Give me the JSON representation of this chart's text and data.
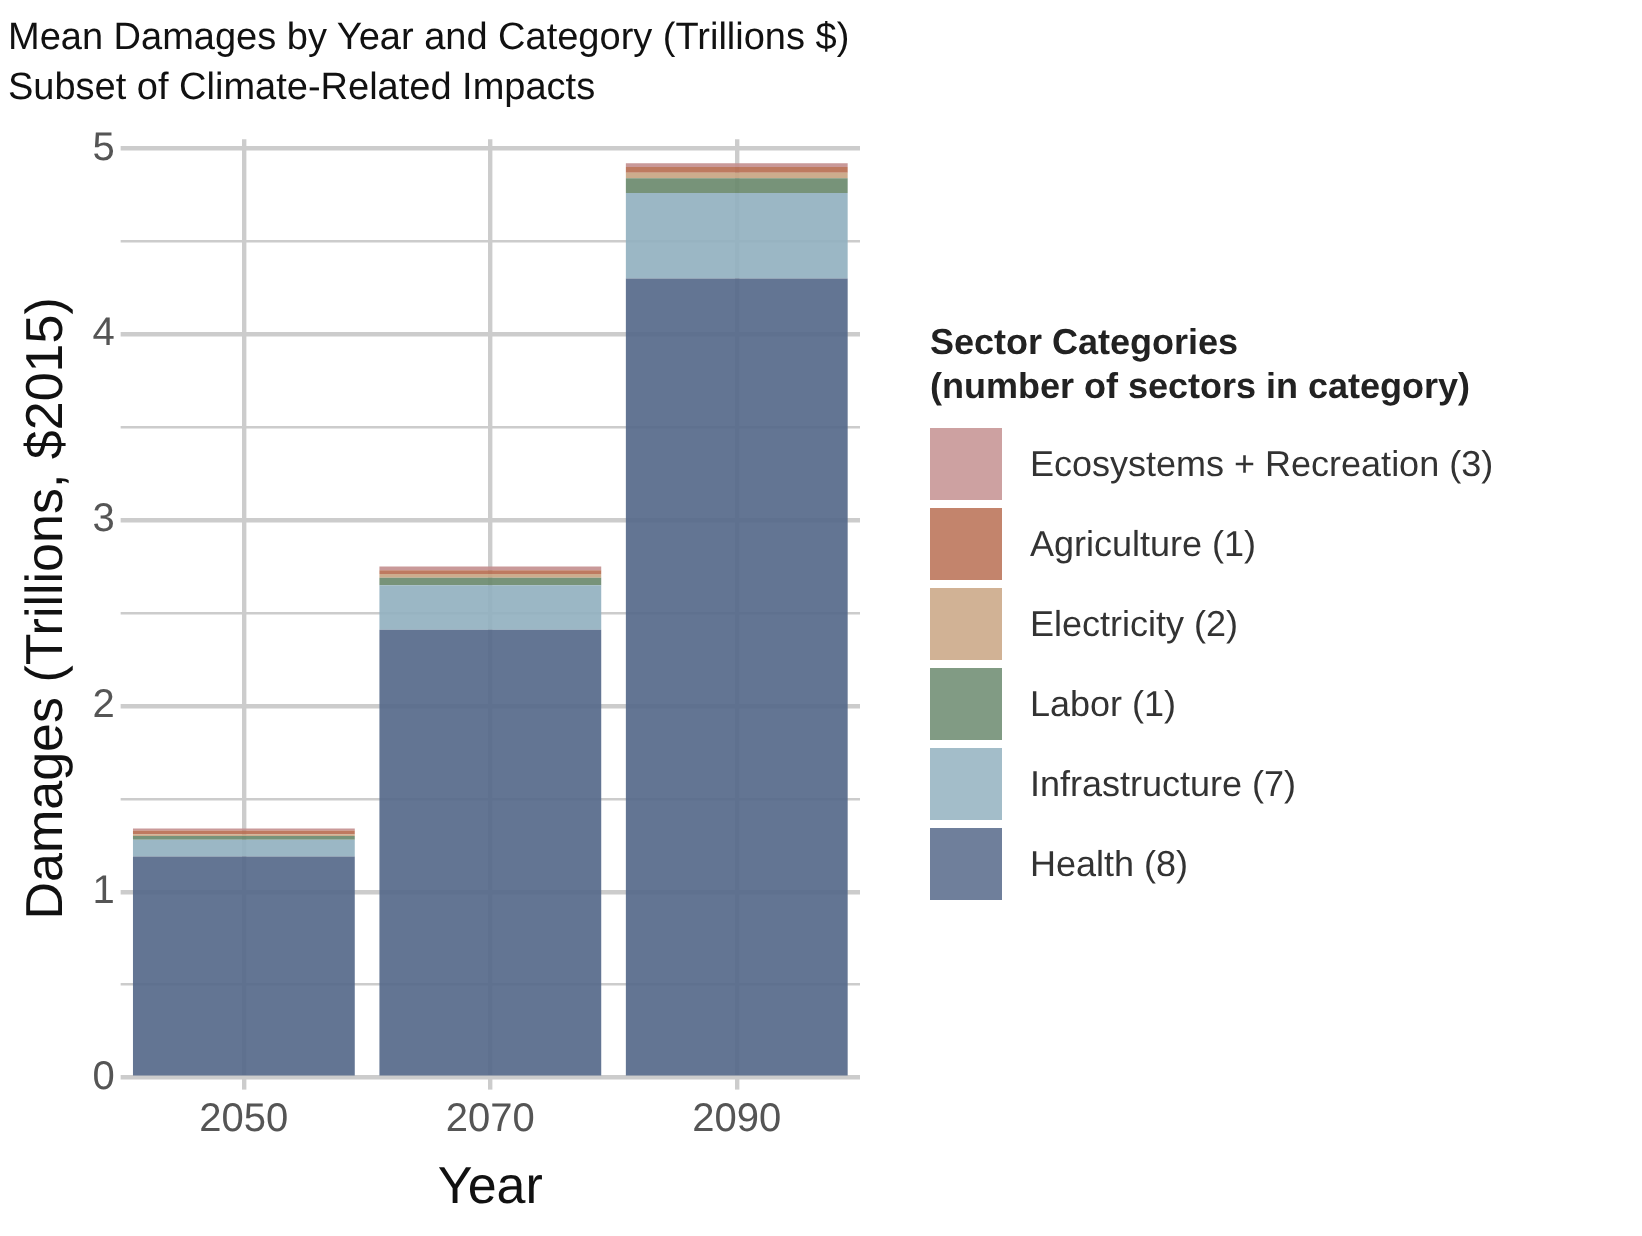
{
  "chart_data": {
    "type": "bar",
    "title": "Mean Damages by Year and Category (Trillions $)",
    "subtitle": "Subset of Climate-Related Impacts",
    "xlabel": "Year",
    "ylabel": "Damages (Trillions, $2015)",
    "legend_title": "Sector Categories\n(number of sectors in category)",
    "categories": [
      "2050",
      "2070",
      "2090"
    ],
    "stacked": true,
    "series": [
      {
        "name": "Health (8)",
        "color": "#56698a",
        "values": [
          1.19,
          2.41,
          4.3
        ]
      },
      {
        "name": "Infrastructure (7)",
        "color": "#93b1c0",
        "values": [
          0.09,
          0.24,
          0.46
        ]
      },
      {
        "name": "Labor (1)",
        "color": "#6b8a6e",
        "values": [
          0.02,
          0.04,
          0.08
        ]
      },
      {
        "name": "Electricity (2)",
        "color": "#c9a583",
        "values": [
          0.01,
          0.02,
          0.03
        ]
      },
      {
        "name": "Agriculture (1)",
        "color": "#b86f52",
        "values": [
          0.02,
          0.02,
          0.03
        ]
      },
      {
        "name": "Ecosystems + Recreation (3)",
        "color": "#c49090",
        "values": [
          0.01,
          0.02,
          0.02
        ]
      }
    ],
    "ylim": [
      0,
      5.05
    ],
    "yticks": [
      0,
      {
        "value": 0.5,
        "label": null
      },
      1,
      {
        "value": 1.5,
        "label": null
      },
      2,
      {
        "value": 2.5,
        "label": null
      },
      3,
      {
        "value": 3.5,
        "label": null
      },
      4,
      {
        "value": 4.5,
        "label": null
      },
      5
    ],
    "grid": true,
    "legend": "right"
  }
}
